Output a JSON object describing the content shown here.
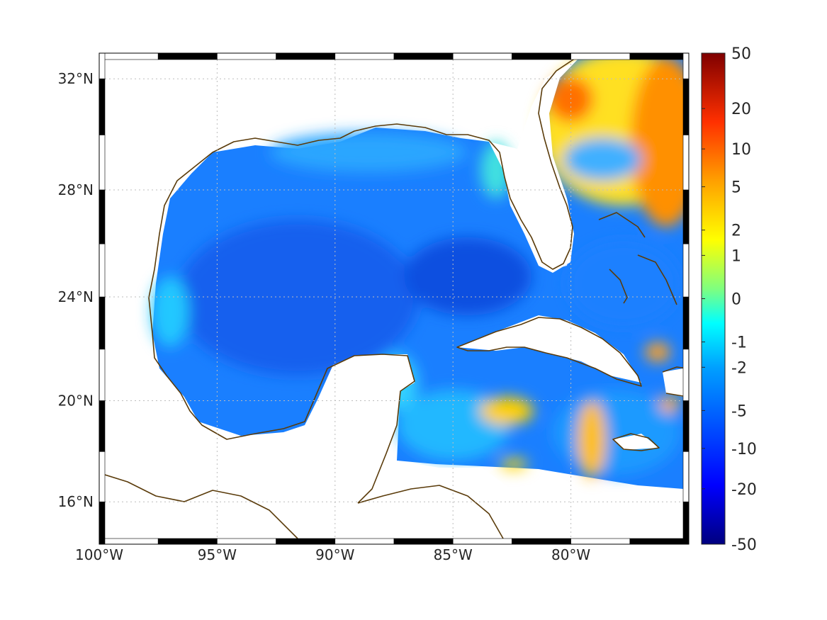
{
  "map": {
    "projection": "mercator",
    "lon_range": [
      -100,
      -75
    ],
    "lat_range": [
      14.3,
      32.9
    ],
    "x_ticks": [
      {
        "value": -100,
        "label": "100°W"
      },
      {
        "value": -95,
        "label": "95°W"
      },
      {
        "value": -90,
        "label": "90°W"
      },
      {
        "value": -85,
        "label": "85°W"
      },
      {
        "value": -80,
        "label": "80°W"
      }
    ],
    "y_ticks": [
      {
        "value": 16,
        "label": "16°N"
      },
      {
        "value": 20,
        "label": "20°N"
      },
      {
        "value": 24,
        "label": "24°N"
      },
      {
        "value": 28,
        "label": "28°N"
      },
      {
        "value": 32,
        "label": "32°N"
      }
    ],
    "grid": "dotted",
    "frame": "black-white checkered",
    "coastline_color": "#5a3b0a",
    "land_color": "#ffffff"
  },
  "colorbar": {
    "position": "right",
    "colormap": "jet",
    "range": [
      -50,
      50
    ],
    "scale": "symmetric-log",
    "ticks": [
      {
        "value": 50,
        "label": "50"
      },
      {
        "value": 20,
        "label": "20"
      },
      {
        "value": 10,
        "label": "10"
      },
      {
        "value": 5,
        "label": "5"
      },
      {
        "value": 2,
        "label": "2"
      },
      {
        "value": 1,
        "label": "1"
      },
      {
        "value": 0,
        "label": "0"
      },
      {
        "value": -1,
        "label": "-1"
      },
      {
        "value": -2,
        "label": "-2"
      },
      {
        "value": -5,
        "label": "-5"
      },
      {
        "value": -10,
        "label": "-10"
      },
      {
        "value": -20,
        "label": "-20"
      },
      {
        "value": -50,
        "label": "-50"
      }
    ]
  },
  "field_regions": [
    {
      "name": "gulf-of-mexico",
      "level": -5
    },
    {
      "name": "western-atlantic",
      "level": 2
    },
    {
      "name": "caribbean-sea",
      "level": -2
    }
  ]
}
